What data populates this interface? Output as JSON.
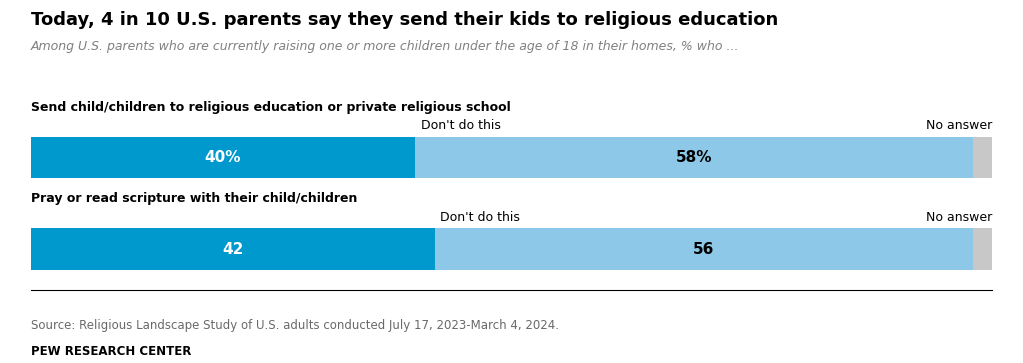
{
  "chart_data": {
    "type": "bar",
    "orientation": "horizontal",
    "stacked": true,
    "title": "Today, 4 in 10 U.S. parents say they send their kids to religious education",
    "subtitle": "Among U.S. parents who are currently raising one or more children under the age of 18 in their homes, % who ...",
    "annotations": [
      "Source: Religious Landscape Study of U.S. adults conducted July 17, 2023-March 4, 2024.",
      "PEW RESEARCH CENTER"
    ],
    "categories": [
      "Send child/children to religious education or private religious school",
      "Pray or read scripture with their child/children"
    ],
    "series": [
      {
        "color": "#0099cd",
        "values": [
          40,
          42
        ],
        "value_labels": [
          "40%",
          "42"
        ]
      },
      {
        "name": "Don't do this",
        "color": "#8ec8e8",
        "values": [
          58,
          56
        ],
        "value_labels": [
          "58%",
          "56"
        ]
      },
      {
        "name": "No answer",
        "color": "#c8c8c8",
        "values": [
          2,
          2
        ],
        "value_labels": [
          null,
          null
        ]
      }
    ],
    "xlim": [
      0,
      100
    ],
    "data_labels": true,
    "tick_labels": false,
    "grid": false
  }
}
